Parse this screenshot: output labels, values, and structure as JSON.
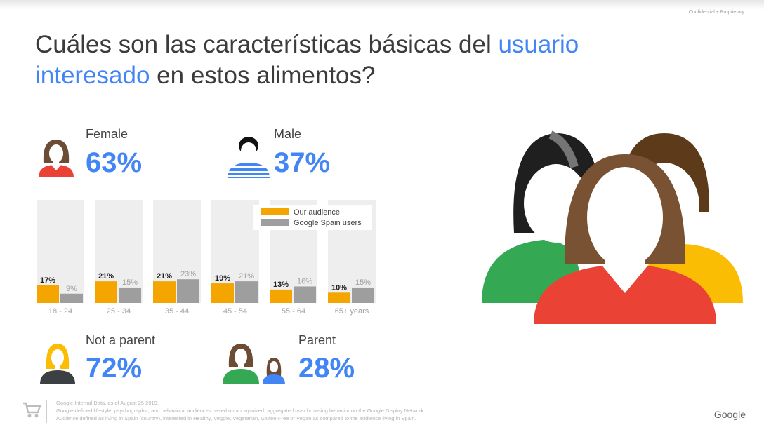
{
  "header": {
    "confidential": "Confidential + Proprietary",
    "title_part1": "Cuáles son las características básicas del ",
    "title_highlight1": "usuario",
    "title_highlight2": "interesado",
    "title_part2": " en estos alimentos?"
  },
  "gender": {
    "female_label": "Female",
    "female_value": "63%",
    "male_label": "Male",
    "male_value": "37%"
  },
  "parent": {
    "not_parent_label": "Not a parent",
    "not_parent_value": "72%",
    "parent_label": "Parent",
    "parent_value": "28%"
  },
  "chart_data": {
    "type": "bar",
    "title": "",
    "xlabel": "",
    "ylabel": "",
    "categories": [
      "18 - 24",
      "25 - 34",
      "35 - 44",
      "45 - 54",
      "55 - 64",
      "65+ years"
    ],
    "series": [
      {
        "name": "Our audience",
        "values": [
          17,
          21,
          21,
          19,
          13,
          10
        ],
        "labels": [
          "17%",
          "21%",
          "21%",
          "19%",
          "13%",
          "10%"
        ],
        "color": "#f4a500"
      },
      {
        "name": "Google Spain users",
        "values": [
          9,
          15,
          23,
          21,
          16,
          15
        ],
        "labels": [
          "9%",
          "15%",
          "23%",
          "21%",
          "16%",
          "15%"
        ],
        "color": "#9e9e9e"
      }
    ],
    "ylim": [
      0,
      100
    ],
    "grid": false,
    "legend_position": "top-right"
  },
  "colors": {
    "accent": "#4285f4",
    "our_audience": "#f4a500",
    "spain_users": "#9e9e9e",
    "female": "#ea4335",
    "green": "#34a853",
    "yellow": "#fbbc04"
  },
  "footer": {
    "line1": "Google Internal Data, as of August 25 2019.",
    "line2": "Google-defined lifestyle, psychographic, and behavioral audiences based on anonymized, aggregated user browsing behavior on the Google Display Network.",
    "line3": "Audience defined as living in Spain (country), interested in Healthy, Veggie, Vegetarian, Gluten-Free or Vegan as compared to the audience living in Spain.",
    "brand": "Google",
    "cart_icon": "shopping-cart-icon"
  }
}
